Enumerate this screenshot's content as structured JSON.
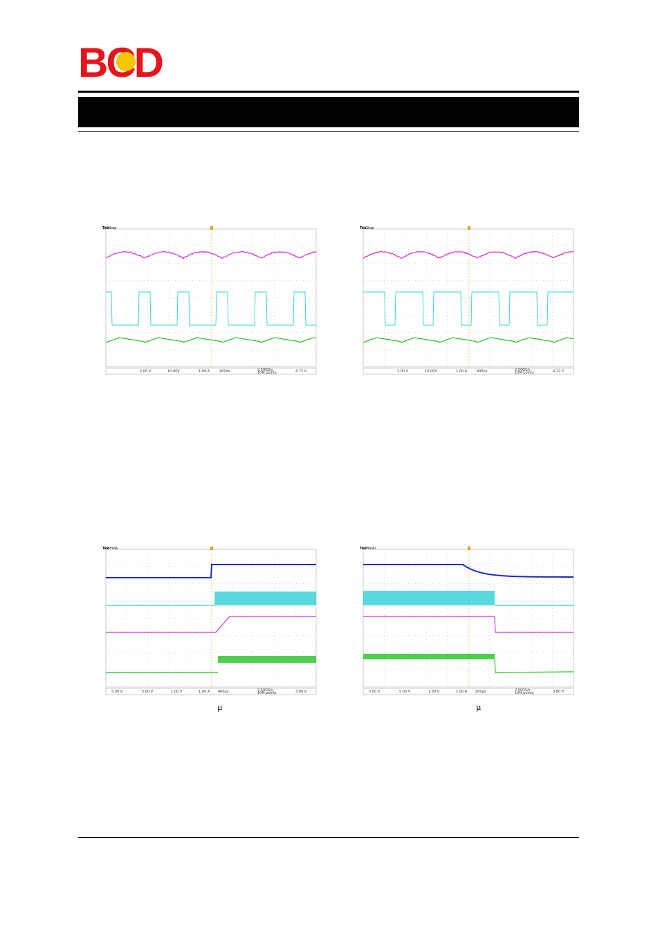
{
  "logo": "BCD",
  "scopes": [
    {
      "brand": "Tek",
      "status": "Stop",
      "readouts": [
        "2.00 V",
        "10.00V",
        "1.00 A",
        "400ns",
        "2.50GS/s",
        "10M points",
        "4.72 V"
      ]
    },
    {
      "brand": "Tek",
      "status": "Stop",
      "readouts": [
        "2.00 V",
        "10.00V",
        "1.00 A",
        "400ns",
        "2.50GS/s",
        "10M points",
        "4.72 V"
      ]
    },
    {
      "brand": "Tek",
      "status": "PreVu",
      "readouts": [
        "5.00 V",
        "5.00 V",
        "1.00 V",
        "1.00 A",
        "400µs",
        "2.50GS/s",
        "10M points",
        "3.80 V"
      ]
    },
    {
      "brand": "Tek",
      "status": "PreVu",
      "readouts": [
        "5.00 V",
        "5.00 V",
        "1.00 V",
        "1.00 A",
        "200µs",
        "2.50GS/s",
        "10M points",
        "3.80 V"
      ]
    }
  ],
  "captions": [
    "µ",
    "µ"
  ]
}
